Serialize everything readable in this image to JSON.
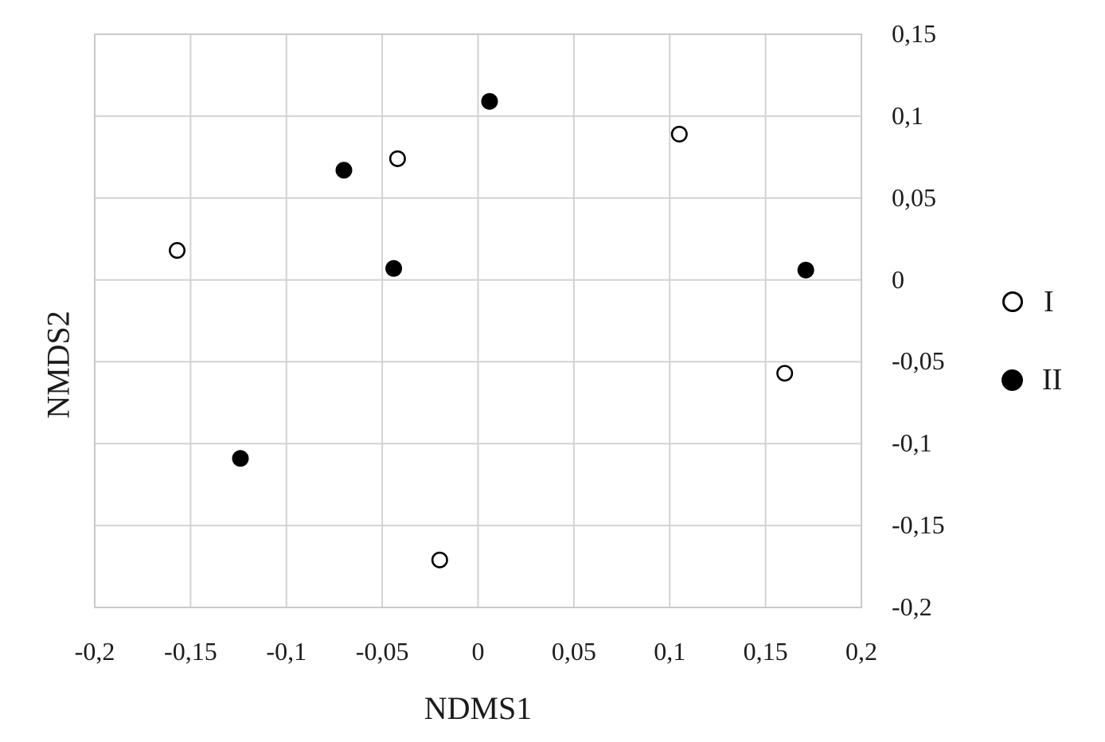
{
  "colors": {
    "background": "#ffffff",
    "text": "#1b1b1b",
    "grid": "#d2d2d2",
    "marker": "#000000",
    "open_marker_fill": "#ffffff"
  },
  "legend": {
    "entries": [
      {
        "label": "I",
        "marker": "open-circle"
      },
      {
        "label": "II",
        "marker": "filled-circle"
      }
    ]
  },
  "chart_data": {
    "type": "scatter",
    "title": "",
    "xlabel": "NDMS1",
    "ylabel": "NMDS2",
    "xlim": [
      -0.2,
      0.2
    ],
    "ylim": [
      -0.2,
      0.15
    ],
    "grid": true,
    "legend_position": "right",
    "decimal_separator": ",",
    "x_ticks": [
      {
        "value": -0.2,
        "label": "-0,2"
      },
      {
        "value": -0.15,
        "label": "-0,15"
      },
      {
        "value": -0.1,
        "label": "-0,1"
      },
      {
        "value": -0.05,
        "label": "-0,05"
      },
      {
        "value": 0,
        "label": "0"
      },
      {
        "value": 0.05,
        "label": "0,05"
      },
      {
        "value": 0.1,
        "label": "0,1"
      },
      {
        "value": 0.15,
        "label": "0,15"
      },
      {
        "value": 0.2,
        "label": "0,2"
      }
    ],
    "y_ticks": [
      {
        "value": 0.15,
        "label": "0,15"
      },
      {
        "value": 0.1,
        "label": "0,1"
      },
      {
        "value": 0.05,
        "label": "0,05"
      },
      {
        "value": 0,
        "label": "0"
      },
      {
        "value": -0.05,
        "label": "-0,05"
      },
      {
        "value": -0.1,
        "label": "-0,1"
      },
      {
        "value": -0.15,
        "label": "-0,15"
      },
      {
        "value": -0.2,
        "label": "-0,2"
      }
    ],
    "series": [
      {
        "name": "I",
        "marker": "open-circle",
        "points": [
          [
            -0.157,
            0.018
          ],
          [
            -0.042,
            0.074
          ],
          [
            0.105,
            0.089
          ],
          [
            0.16,
            -0.057
          ],
          [
            -0.02,
            -0.171
          ]
        ]
      },
      {
        "name": "II",
        "marker": "filled-circle",
        "points": [
          [
            0.006,
            0.109
          ],
          [
            -0.07,
            0.067
          ],
          [
            -0.044,
            0.007
          ],
          [
            0.171,
            0.006
          ],
          [
            -0.124,
            -0.109
          ]
        ]
      }
    ]
  }
}
